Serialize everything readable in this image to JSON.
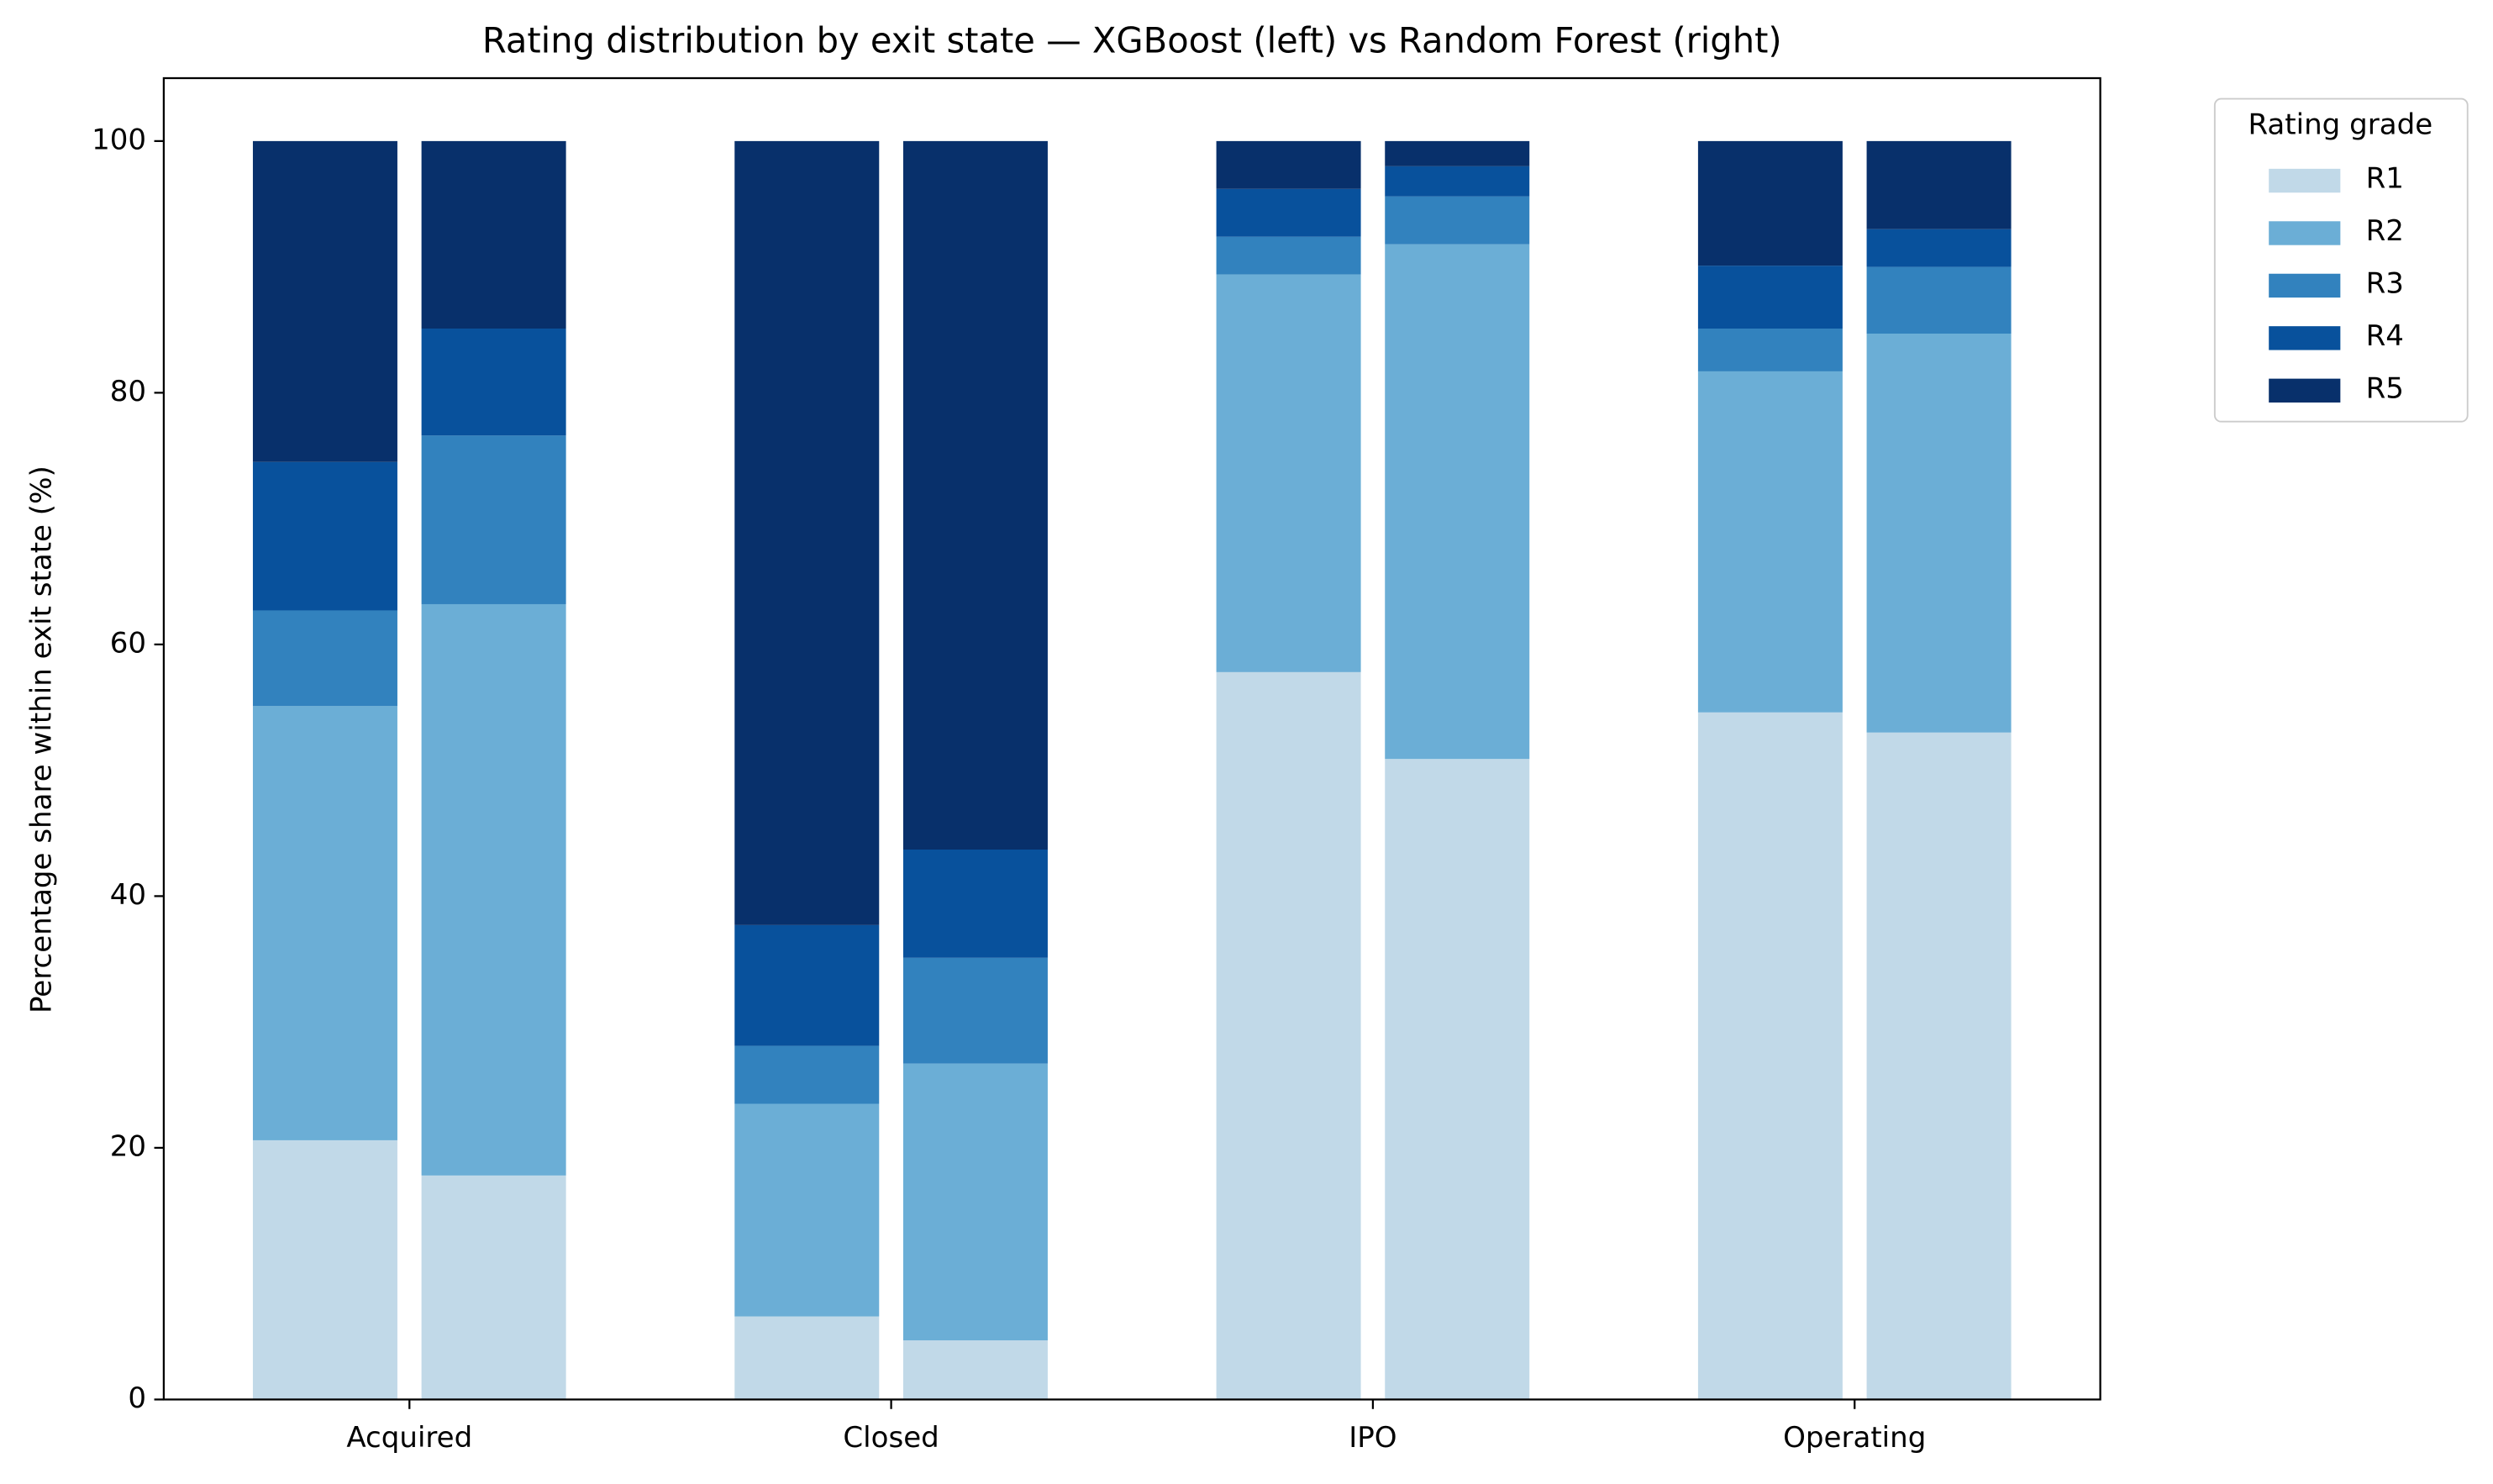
{
  "chart_data": {
    "type": "bar",
    "stacked": true,
    "title": "Rating distribution by exit state — XGBoost (left) vs Random Forest (right)",
    "ylabel": "Percentage share within exit state (%)",
    "categories": [
      "Acquired",
      "Closed",
      "IPO",
      "Operating"
    ],
    "legend_title": "Rating grade",
    "legend_position": "outside-upper-right",
    "series": [
      {
        "name": "R1",
        "color": "#c1d9e8",
        "values": [
          [
            20.6,
            17.8
          ],
          [
            6.6,
            4.7
          ],
          [
            57.8,
            50.9
          ],
          [
            54.6,
            53.0
          ]
        ]
      },
      {
        "name": "R2",
        "color": "#6baed6",
        "values": [
          [
            34.5,
            45.4
          ],
          [
            16.9,
            22.0
          ],
          [
            31.6,
            40.9
          ],
          [
            27.1,
            31.7
          ]
        ]
      },
      {
        "name": "R3",
        "color": "#3282be",
        "values": [
          [
            7.6,
            13.4
          ],
          [
            4.6,
            8.4
          ],
          [
            3.0,
            3.8
          ],
          [
            3.4,
            5.3
          ]
        ]
      },
      {
        "name": "R4",
        "color": "#08519c",
        "values": [
          [
            11.8,
            8.5
          ],
          [
            9.6,
            8.6
          ],
          [
            3.8,
            2.4
          ],
          [
            5.0,
            3.0
          ]
        ]
      },
      {
        "name": "R5",
        "color": "#08306b",
        "values": [
          [
            25.5,
            14.9
          ],
          [
            62.3,
            56.3
          ],
          [
            3.8,
            2.0
          ],
          [
            9.9,
            7.0
          ]
        ]
      }
    ],
    "ylim": [
      0,
      105
    ],
    "yticks": [
      0,
      20,
      40,
      60,
      80,
      100
    ],
    "grid": false
  }
}
